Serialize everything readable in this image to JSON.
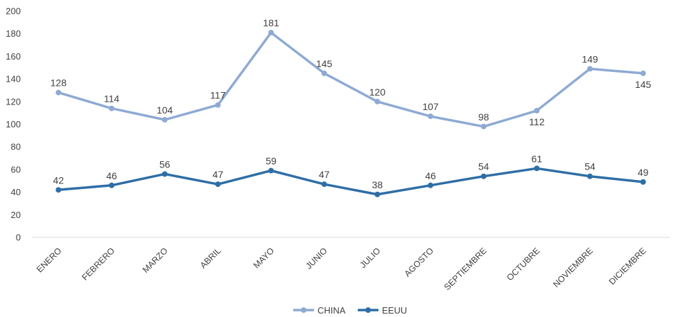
{
  "chart_data": {
    "type": "line",
    "title": "",
    "xlabel": "",
    "ylabel": "",
    "ylim": [
      0,
      200
    ],
    "yticks": [
      0,
      20,
      40,
      60,
      80,
      100,
      120,
      140,
      160,
      180,
      200
    ],
    "grid": false,
    "legend_position": "bottom",
    "categories": [
      "ENERO",
      "FEBRERO",
      "MARZO",
      "ABRIL",
      "MAYO",
      "JUNIO",
      "JULIO",
      "AGOSTO",
      "SEPTIEMBRE",
      "OCTUBRE",
      "NOVIEMBRE",
      "DICIEMBRE"
    ],
    "series": [
      {
        "name": "CHINA",
        "color": "#8eaad3",
        "values": [
          128,
          114,
          104,
          117,
          181,
          145,
          120,
          107,
          98,
          112,
          149,
          145
        ],
        "label_side": [
          "above",
          "above",
          "above",
          "above",
          "above",
          "above",
          "above",
          "above",
          "above",
          "below",
          "above",
          "below"
        ]
      },
      {
        "name": "EEUU",
        "color": "#2e6ea6",
        "values": [
          42,
          46,
          56,
          47,
          59,
          47,
          38,
          46,
          54,
          61,
          54,
          49
        ],
        "label_side": [
          "above",
          "above",
          "above",
          "above",
          "above",
          "above",
          "above",
          "above",
          "above",
          "above",
          "above",
          "above"
        ]
      }
    ]
  }
}
